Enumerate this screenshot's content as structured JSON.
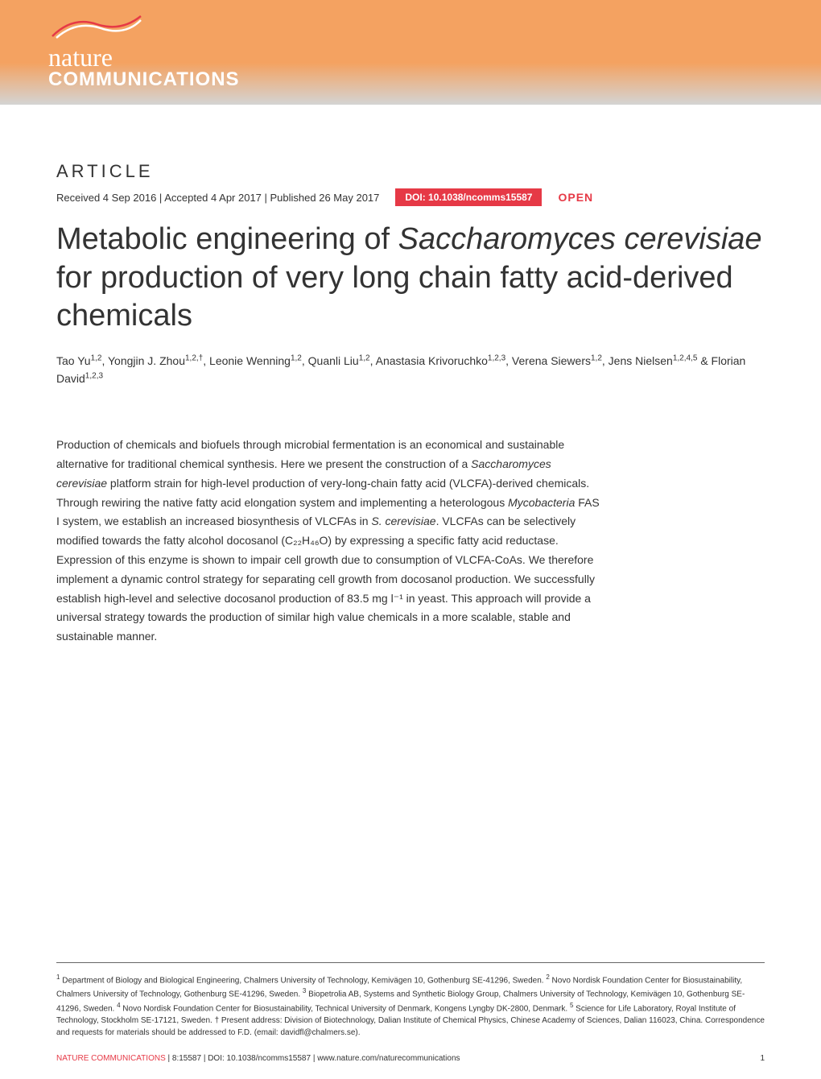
{
  "banner": {
    "logo_nature": "nature",
    "logo_comm": "COMMUNICATIONS",
    "background_gradient_top": "#f4a261",
    "background_gradient_bottom": "#d4d4d4",
    "swoosh_color_1": "#e63946",
    "swoosh_color_2": "#f4a261"
  },
  "article": {
    "label": "ARTICLE",
    "received": "Received 4 Sep 2016",
    "accepted": "Accepted 4 Apr 2017",
    "published": "Published 26 May 2017",
    "doi": "DOI: 10.1038/ncomms15587",
    "open": "OPEN",
    "title_part1": "Metabolic engineering of ",
    "title_italic": "Saccharomyces cerevisiae",
    "title_part2": " for production of very long chain fatty acid-derived chemicals",
    "doi_bg_color": "#e63946",
    "open_color": "#e63946"
  },
  "authors": {
    "list": [
      {
        "name": "Tao Yu",
        "sup": "1,2"
      },
      {
        "name": "Yongjin J. Zhou",
        "sup": "1,2,†"
      },
      {
        "name": "Leonie Wenning",
        "sup": "1,2"
      },
      {
        "name": "Quanli Liu",
        "sup": "1,2"
      },
      {
        "name": "Anastasia Krivoruchko",
        "sup": "1,2,3"
      },
      {
        "name": "Verena Siewers",
        "sup": "1,2"
      },
      {
        "name": "Jens Nielsen",
        "sup": "1,2,4,5"
      },
      {
        "name": "Florian David",
        "sup": "1,2,3"
      }
    ]
  },
  "abstract": {
    "text_parts": [
      "Production of chemicals and biofuels through microbial fermentation is an economical and sustainable alternative for traditional chemical synthesis. Here we present the construction of a ",
      "Saccharomyces cerevisiae",
      " platform strain for high-level production of very-long-chain fatty acid (VLCFA)-derived chemicals. Through rewiring the native fatty acid elongation system and implementing a heterologous ",
      "Mycobacteria",
      " FAS I system, we establish an increased biosynthesis of VLCFAs in ",
      "S. cerevisiae",
      ". VLCFAs can be selectively modified towards the fatty alcohol docosanol (C₂₂H₄₆O) by expressing a specific fatty acid reductase. Expression of this enzyme is shown to impair cell growth due to consumption of VLCFA-CoAs. We therefore implement a dynamic control strategy for separating cell growth from docosanol production. We successfully establish high-level and selective docosanol production of 83.5 mg l⁻¹ in yeast. This approach will provide a universal strategy towards the production of similar high value chemicals in a more scalable, stable and sustainable manner."
    ],
    "fontsize": 14,
    "line_height": 1.7
  },
  "affiliations": {
    "items": [
      {
        "num": "1",
        "text": "Department of Biology and Biological Engineering, Chalmers University of Technology, Kemivägen 10, Gothenburg SE-41296, Sweden."
      },
      {
        "num": "2",
        "text": "Novo Nordisk Foundation Center for Biosustainability, Chalmers University of Technology, Gothenburg SE-41296, Sweden."
      },
      {
        "num": "3",
        "text": "Biopetrolia AB, Systems and Synthetic Biology Group, Chalmers University of Technology, Kemivägen 10, Gothenburg SE-41296, Sweden."
      },
      {
        "num": "4",
        "text": "Novo Nordisk Foundation Center for Biosustainability, Technical University of Denmark, Kongens Lyngby DK-2800, Denmark."
      },
      {
        "num": "5",
        "text": "Science for Life Laboratory, Royal Institute of Technology, Stockholm SE-17121, Sweden."
      }
    ],
    "dagger": "† Present address: Division of Biotechnology, Dalian Institute of Chemical Physics, Chinese Academy of Sciences, Dalian 116023, China.",
    "correspondence": "Correspondence and requests for materials should be addressed to F.D. (email: davidfl@chalmers.se)."
  },
  "footer": {
    "journal": "NATURE COMMUNICATIONS",
    "citation": " | 8:15587 | DOI: 10.1038/ncomms15587 | www.nature.com/naturecommunications",
    "page": "1",
    "journal_color": "#e63946"
  }
}
